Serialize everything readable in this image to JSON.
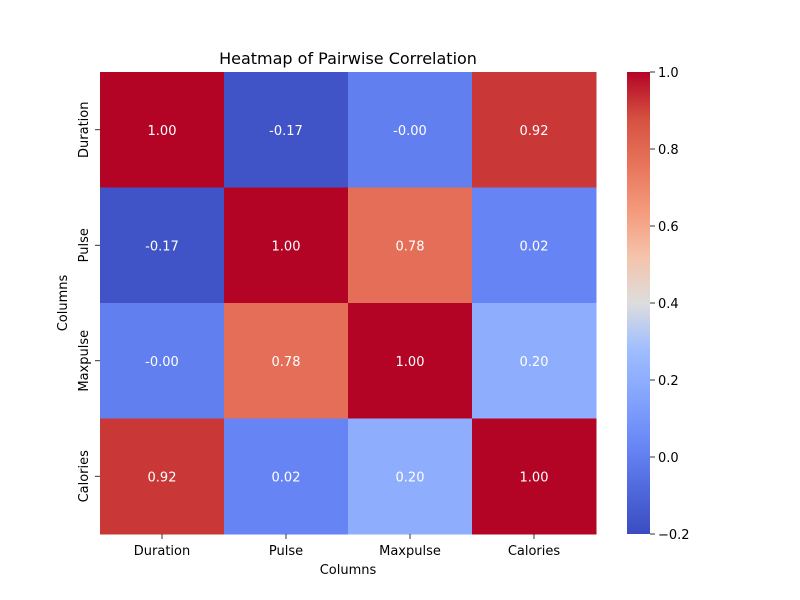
{
  "chart_data": {
    "type": "heatmap",
    "title": "Heatmap of Pairwise Correlation",
    "xlabel": "Columns",
    "ylabel": "Columns",
    "x_categories": [
      "Duration",
      "Pulse",
      "Maxpulse",
      "Calories"
    ],
    "y_categories": [
      "Duration",
      "Pulse",
      "Maxpulse",
      "Calories"
    ],
    "values": [
      [
        1.0,
        -0.17,
        -0.0,
        0.92
      ],
      [
        -0.17,
        1.0,
        0.78,
        0.02
      ],
      [
        -0.0,
        0.78,
        1.0,
        0.2
      ],
      [
        0.92,
        0.02,
        0.2,
        1.0
      ]
    ],
    "annotations": [
      [
        "1.00",
        "-0.17",
        "-0.00",
        "0.92"
      ],
      [
        "-0.17",
        "1.00",
        "0.78",
        "0.02"
      ],
      [
        "-0.00",
        "0.78",
        "1.00",
        "0.20"
      ],
      [
        "0.92",
        "0.02",
        "0.20",
        "1.00"
      ]
    ],
    "colormap": "coolwarm",
    "vmin": -0.2,
    "vmax": 1.0,
    "colorbar": {
      "ticks": [
        -0.2,
        0.0,
        0.2,
        0.4,
        0.6,
        0.8,
        1.0
      ],
      "tick_labels": [
        "−0.2",
        "0.0",
        "0.2",
        "0.4",
        "0.6",
        "0.8",
        "1.0"
      ],
      "placement": "right"
    }
  }
}
